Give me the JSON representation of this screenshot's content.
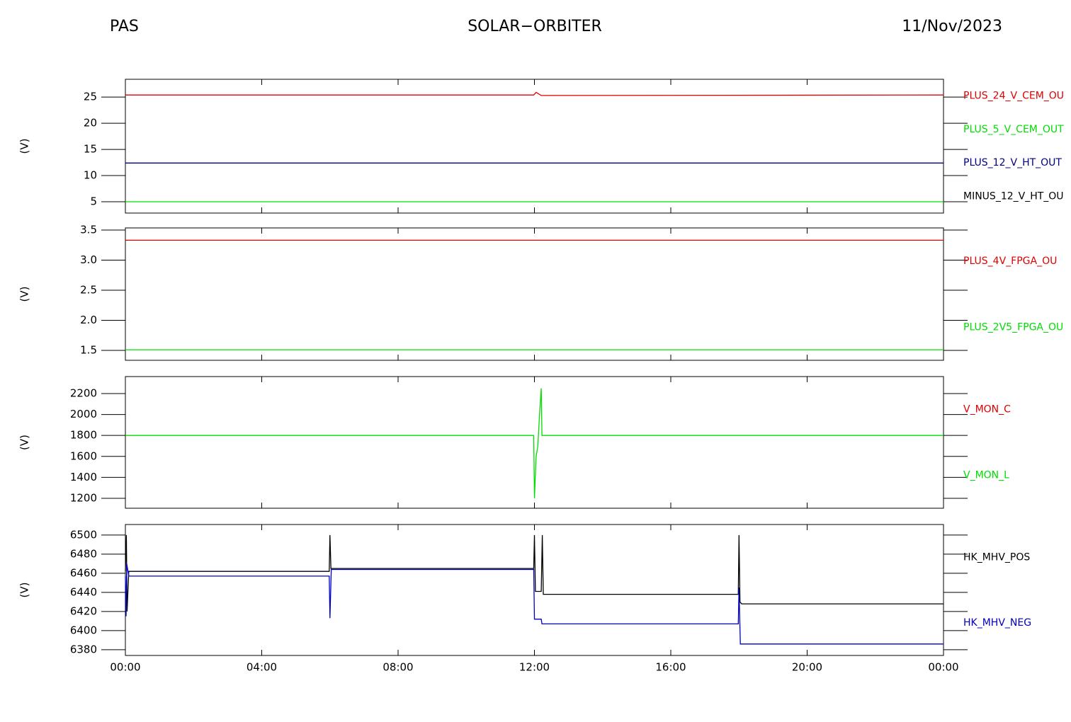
{
  "header": {
    "left": "PAS",
    "center": "SOLAR−ORBITER",
    "right": "11/Nov/2023"
  },
  "chart_data": [
    {
      "type": "line",
      "ylabel": "(V)",
      "xlim": [
        0,
        24
      ],
      "ylim": [
        2.84,
        28.4
      ],
      "yticks": [
        5,
        10,
        15,
        20,
        25
      ],
      "series": [
        {
          "name": "PLUS_24_V_CEM_OU",
          "color": "#e00000",
          "x": [
            0,
            11.98,
            12.05,
            12.2,
            24
          ],
          "values": [
            25.4,
            25.4,
            25.9,
            25.3,
            25.4
          ]
        },
        {
          "name": "PLUS_5_V_CEM_OUT",
          "color": "#00dd00",
          "x": [
            0,
            24
          ],
          "values": [
            5.0,
            5.0
          ]
        },
        {
          "name": "PLUS_12_V_HT_OUT",
          "color": "#000080",
          "x": [
            0,
            24
          ],
          "values": [
            12.4,
            12.4
          ]
        },
        {
          "name": "MINUS_12_V_HT_OU",
          "color": "#000000",
          "x": [
            0,
            24
          ],
          "values": [
            null,
            null
          ]
        }
      ]
    },
    {
      "type": "line",
      "ylabel": "(V)",
      "xlim": [
        0,
        24
      ],
      "ylim": [
        1.335,
        3.535
      ],
      "yticks": [
        1.5,
        {
          "value": 2,
          "label": "2.0"
        },
        2.5,
        {
          "value": 3,
          "label": "3.0"
        },
        3.5
      ],
      "series": [
        {
          "name": "PLUS_4V_FPGA_OU",
          "color": "#e00000",
          "x": [
            0,
            24
          ],
          "values": [
            3.33,
            3.33
          ]
        },
        {
          "name": "PLUS_2V5_FPGA_OU",
          "color": "#00dd00",
          "x": [
            0,
            24
          ],
          "values": [
            1.51,
            1.51
          ]
        }
      ]
    },
    {
      "type": "line",
      "ylabel": "(V)",
      "xlim": [
        0,
        24
      ],
      "ylim": [
        1105,
        2362
      ],
      "yticks": [
        1200,
        1400,
        1600,
        1800,
        2000,
        2200
      ],
      "series": [
        {
          "name": "V_MON_C",
          "color": "#e00000",
          "x": [
            0,
            24
          ],
          "values": [
            null,
            null
          ]
        },
        {
          "name": "V_MON_L",
          "color": "#00dd00",
          "x": [
            0,
            11.98,
            12.0,
            12.05,
            12.1,
            12.15,
            12.2,
            12.22,
            24
          ],
          "values": [
            1800,
            1800,
            1200,
            1600,
            1700,
            2000,
            2250,
            1800,
            1800
          ]
        }
      ]
    },
    {
      "type": "line",
      "ylabel": "(V)",
      "xlim": [
        0,
        24
      ],
      "ylim": [
        6374,
        6511
      ],
      "yticks": [
        6380,
        6400,
        6420,
        6440,
        6460,
        6480,
        6500
      ],
      "xticks": [
        {
          "value": 0,
          "label": "00:00"
        },
        {
          "value": 4,
          "label": "04:00"
        },
        {
          "value": 8,
          "label": "08:00"
        },
        {
          "value": 12,
          "label": "12:00"
        },
        {
          "value": 16,
          "label": "16:00"
        },
        {
          "value": 20,
          "label": "20:00"
        },
        {
          "value": 24,
          "label": "00:00"
        }
      ],
      "series": [
        {
          "name": "HK_MHV_POS",
          "color": "#000000",
          "x": [
            0,
            0.03,
            0.05,
            0.1,
            5.98,
            6.0,
            6.03,
            6.06,
            11.98,
            12.0,
            12.03,
            12.2,
            12.23,
            12.26,
            17.98,
            18.0,
            18.03,
            18.08,
            24
          ],
          "values": [
            6462,
            6500,
            6420,
            6462,
            6462,
            6500,
            6465,
            6465,
            6465,
            6500,
            6441,
            6441,
            6500,
            6438,
            6438,
            6500,
            6430,
            6428,
            6428
          ]
        },
        {
          "name": "HK_MHV_NEG",
          "color": "#0000c0",
          "x": [
            0,
            0.02,
            0.04,
            0.1,
            5.98,
            6.0,
            6.04,
            11.98,
            12.0,
            12.2,
            12.22,
            17.98,
            18.0,
            18.04,
            24
          ],
          "values": [
            6457,
            6415,
            6470,
            6457,
            6457,
            6413,
            6464,
            6464,
            6412,
            6412,
            6407,
            6407,
            6445,
            6386,
            6386
          ]
        }
      ]
    }
  ]
}
